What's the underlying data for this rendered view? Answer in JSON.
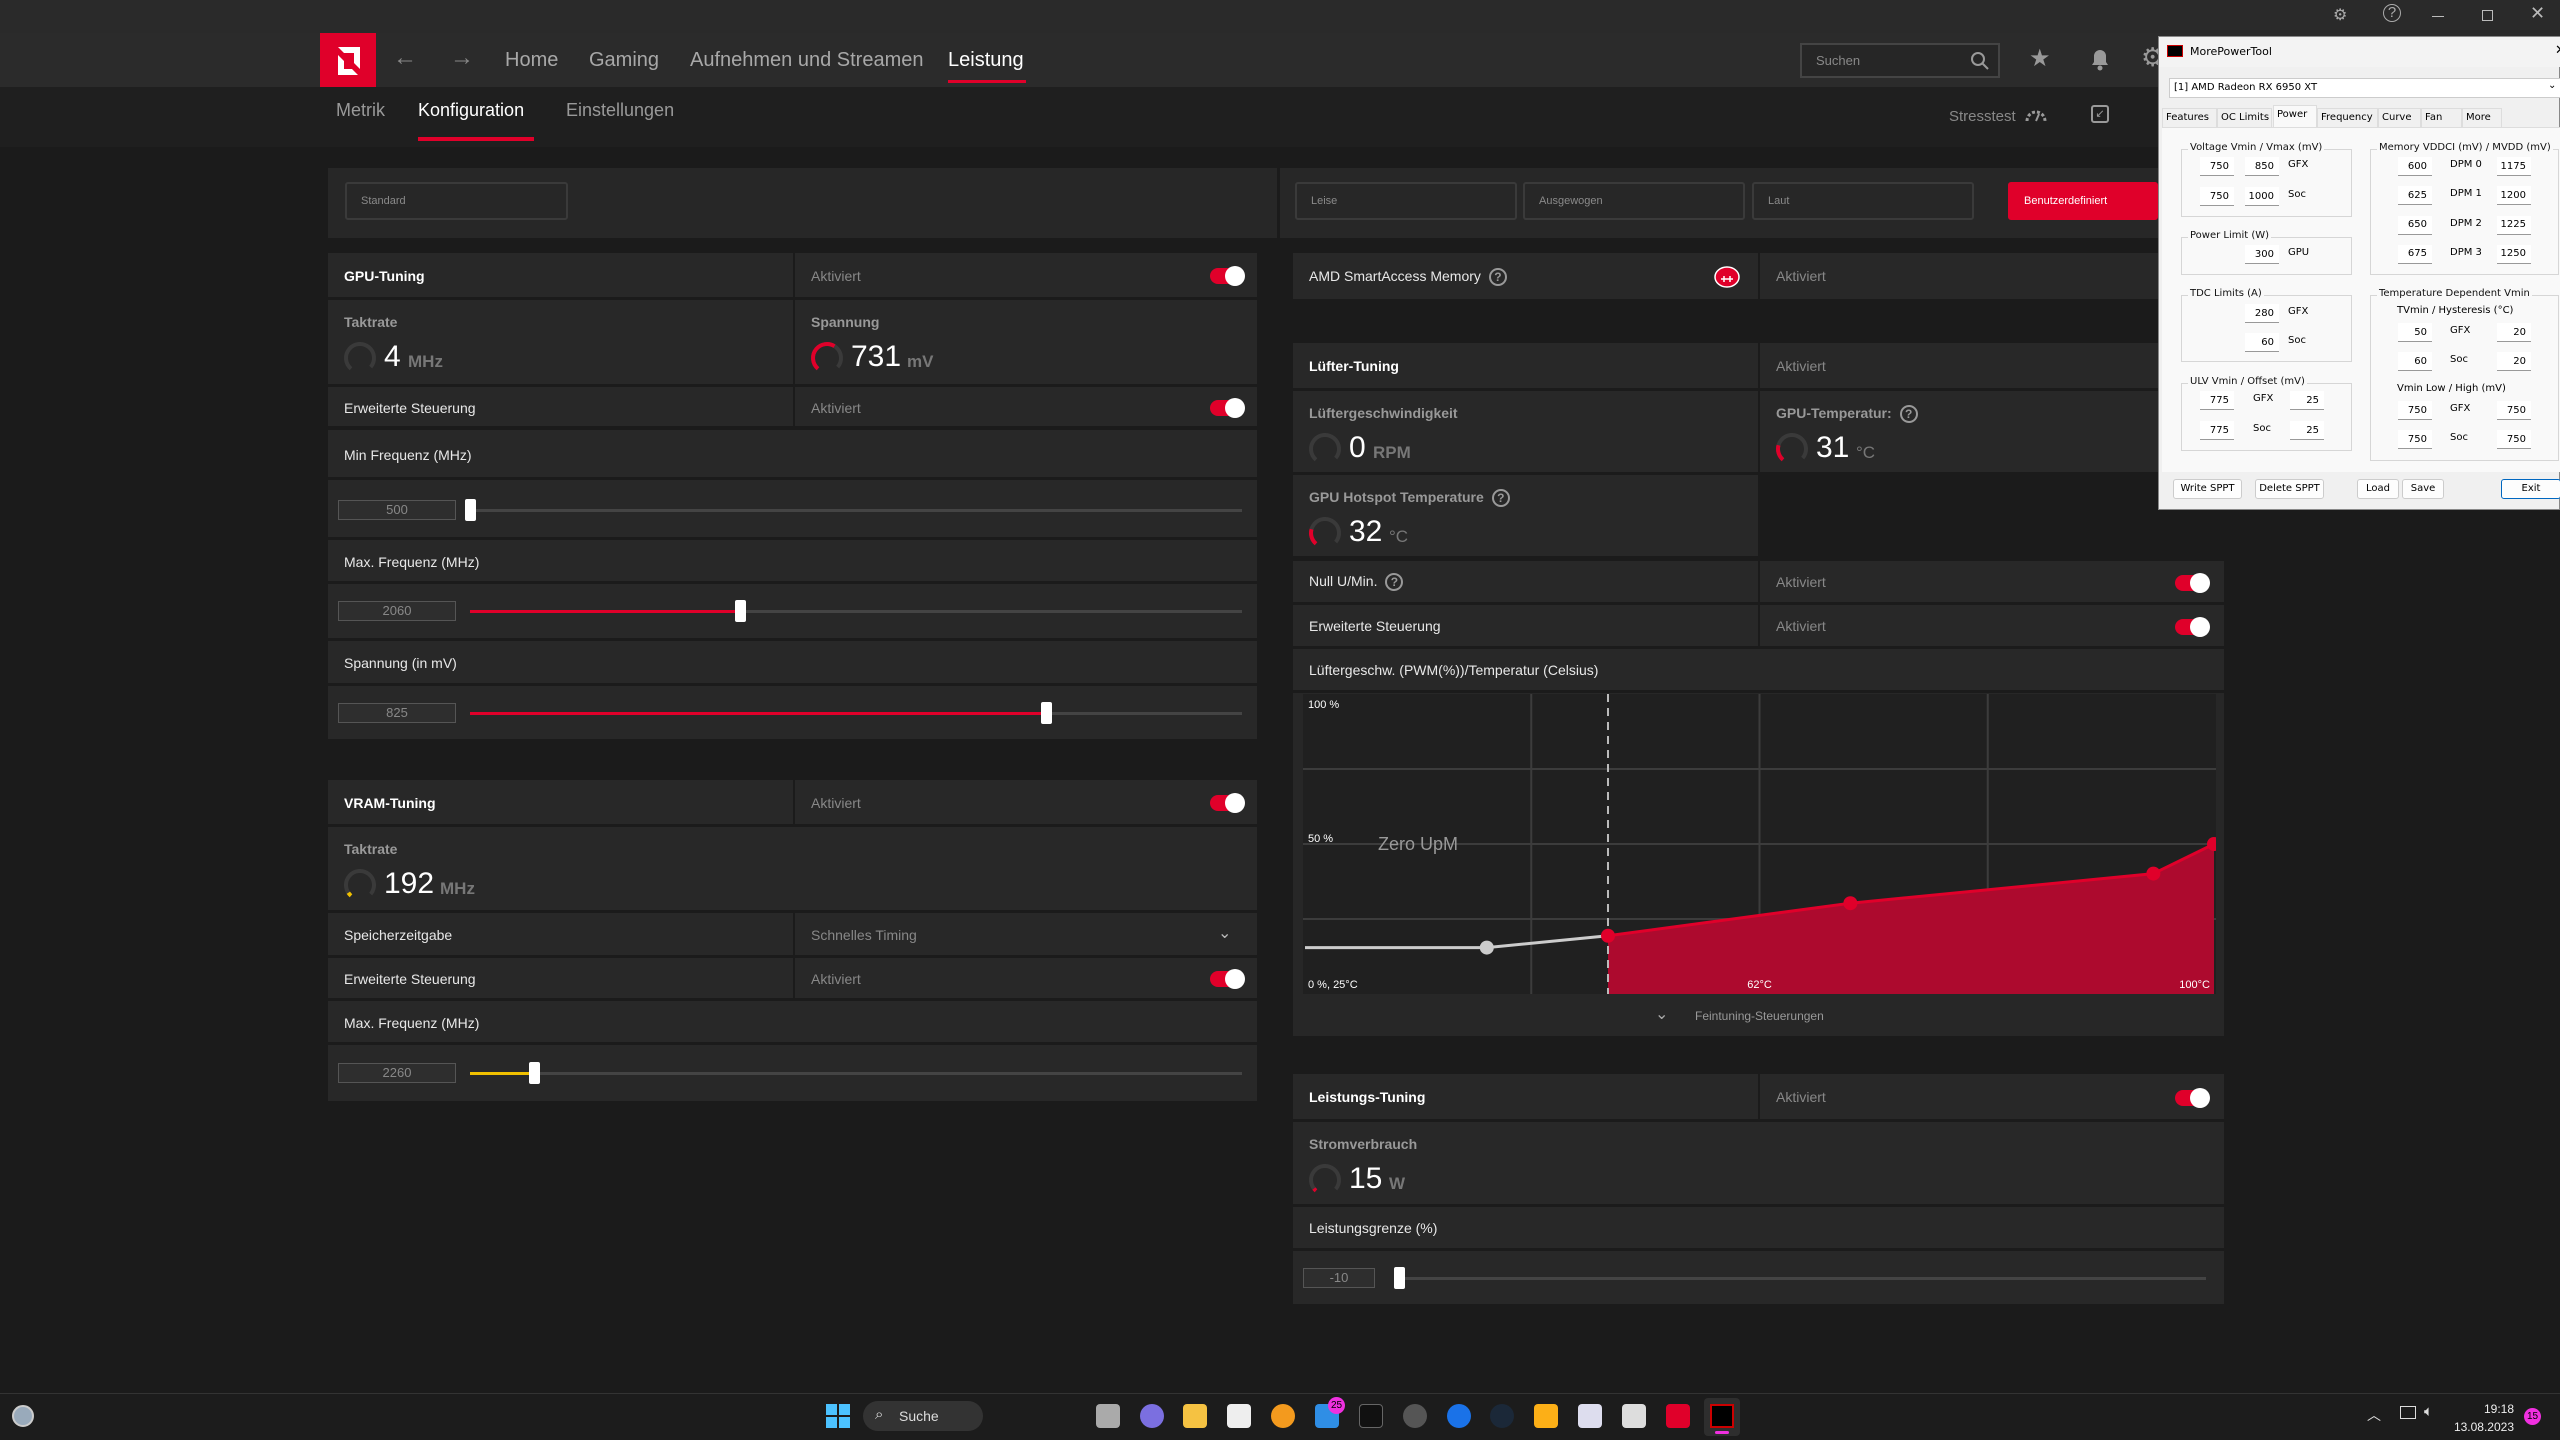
{
  "titlebar": {
    "icons": [
      "bug-icon",
      "help-icon",
      "minimize-icon",
      "maximize-icon",
      "close-icon"
    ]
  },
  "nav": {
    "items": [
      "Home",
      "Gaming",
      "Aufnehmen und Streamen",
      "Leistung"
    ],
    "active": "Leistung",
    "search_placeholder": "Suchen"
  },
  "subnav": {
    "items": [
      "Metrik",
      "Konfiguration",
      "Einstellungen"
    ],
    "active": "Konfiguration",
    "stresstest": "Stresstest"
  },
  "presets": {
    "left": "Standard",
    "fan": [
      "Leise",
      "Ausgewogen",
      "Laut"
    ],
    "custom": "Benutzerdefiniert"
  },
  "gpu_tuning": {
    "title": "GPU-Tuning",
    "status": "Aktiviert",
    "clock": {
      "label": "Taktrate",
      "value": "4",
      "unit": "MHz",
      "gauge": 0.0
    },
    "voltage": {
      "label": "Spannung",
      "value": "731",
      "unit": "mV",
      "gauge": 0.6
    },
    "advanced": {
      "label": "Erweiterte Steuerung",
      "status": "Aktiviert"
    },
    "min_freq": {
      "label": "Min Frequenz (MHz)",
      "value": "500",
      "fraction": 0.0
    },
    "max_freq": {
      "label": "Max. Frequenz (MHz)",
      "value": "2060",
      "fraction": 0.35
    },
    "volt_slider": {
      "label": "Spannung (in mV)",
      "value": "825",
      "fraction": 0.746
    }
  },
  "vram_tuning": {
    "title": "VRAM-Tuning",
    "status": "Aktiviert",
    "clock": {
      "label": "Taktrate",
      "value": "192",
      "unit": "MHz"
    },
    "timing": {
      "label": "Speicherzeitgabe",
      "value": "Schnelles Timing"
    },
    "advanced": {
      "label": "Erweiterte Steuerung",
      "status": "Aktiviert"
    },
    "max_freq": {
      "label": "Max. Frequenz (MHz)",
      "value": "2260",
      "fraction": 0.083
    }
  },
  "sam": {
    "label": "AMD SmartAccess Memory",
    "status": "Aktiviert"
  },
  "fan_tuning": {
    "title": "Lüfter-Tuning",
    "status": "Aktiviert",
    "speed": {
      "label": "Lüftergeschwindigkeit",
      "value": "0",
      "unit": "RPM"
    },
    "gpu_temp": {
      "label": "GPU-Temperatur:",
      "value": "31",
      "unit": "°C"
    },
    "hotspot": {
      "label": "GPU Hotspot Temperature",
      "value": "32",
      "unit": "°C"
    },
    "zero_rpm": {
      "label": "Null U/Min.",
      "status": "Aktiviert"
    },
    "advanced": {
      "label": "Erweiterte Steuerung",
      "status": "Aktiviert"
    },
    "curve_label": "Lüftergeschw. (PWM(%))/Temperatur (Celsius)",
    "finetune": "Feintuning-Steuerungen"
  },
  "chart_data": {
    "type": "area",
    "title": "Lüftergeschw. (PWM(%))/Temperatur (Celsius)",
    "xlim": [
      25,
      100
    ],
    "ylim": [
      0,
      100
    ],
    "ytick_labels": [
      "100 %",
      "50 %",
      "0 %, 25°C"
    ],
    "xtick_labels": [
      "62°C",
      "100°C"
    ],
    "zero_rpm_label": "Zero UpM",
    "zero_rpm_temp": 50,
    "points": [
      {
        "x": 25,
        "y": 15
      },
      {
        "x": 40,
        "y": 15
      },
      {
        "x": 50,
        "y": 19
      },
      {
        "x": 70,
        "y": 30
      },
      {
        "x": 95,
        "y": 40
      },
      {
        "x": 100,
        "y": 50
      }
    ],
    "accent": "#e0002a"
  },
  "power_tuning": {
    "title": "Leistungs-Tuning",
    "status": "Aktiviert",
    "consumption": {
      "label": "Stromverbrauch",
      "value": "15",
      "unit": "W"
    },
    "limit": {
      "label": "Leistungsgrenze (%)",
      "value": "-10",
      "fraction": 0.0
    }
  },
  "mpt": {
    "title": "MorePowerTool",
    "device": "[1] AMD Radeon RX 6950 XT",
    "tabs": [
      "Features",
      "OC Limits",
      "Power",
      "Frequency",
      "Curve",
      "Fan",
      "More"
    ],
    "active_tab": "Power",
    "voltage": {
      "title": "Voltage Vmin / Vmax (mV)",
      "gfx": [
        "750",
        "850"
      ],
      "soc": [
        "750",
        "1000"
      ]
    },
    "power_limit": {
      "title": "Power Limit (W)",
      "gpu": "300"
    },
    "tdc": {
      "title": "TDC Limits (A)",
      "gfx": "280",
      "soc": "60"
    },
    "ulv": {
      "title": "ULV Vmin / Offset (mV)",
      "gfx": [
        "775",
        "25"
      ],
      "soc": [
        "775",
        "25"
      ]
    },
    "memory": {
      "title": "Memory VDDCI (mV) / MVDD (mV)",
      "rows": [
        {
          "label": "DPM 0",
          "vddci": "600",
          "mvdd": "1175"
        },
        {
          "label": "DPM 1",
          "vddci": "625",
          "mvdd": "1200"
        },
        {
          "label": "DPM 2",
          "vddci": "650",
          "mvdd": "1225"
        },
        {
          "label": "DPM 3",
          "vddci": "675",
          "mvdd": "1250"
        }
      ]
    },
    "temp_vmin": {
      "title": "Temperature Dependent Vmin",
      "tv_title": "TVmin / Hysteresis (°C)",
      "tv_gfx": [
        "50",
        "20"
      ],
      "tv_soc": [
        "60",
        "20"
      ],
      "vl_title": "Vmin Low / High (mV)",
      "vl_gfx": [
        "750",
        "750"
      ],
      "vl_soc": [
        "750",
        "750"
      ]
    },
    "labels": {
      "gfx": "GFX",
      "soc": "Soc",
      "gpu": "GPU"
    },
    "buttons": [
      "Write SPPT",
      "Delete SPPT",
      "Load",
      "Save",
      "Exit"
    ]
  },
  "taskbar": {
    "search": "Suche",
    "mail_badge": "25",
    "time": "19:18",
    "date": "13.08.2023",
    "notif_count": "15"
  }
}
